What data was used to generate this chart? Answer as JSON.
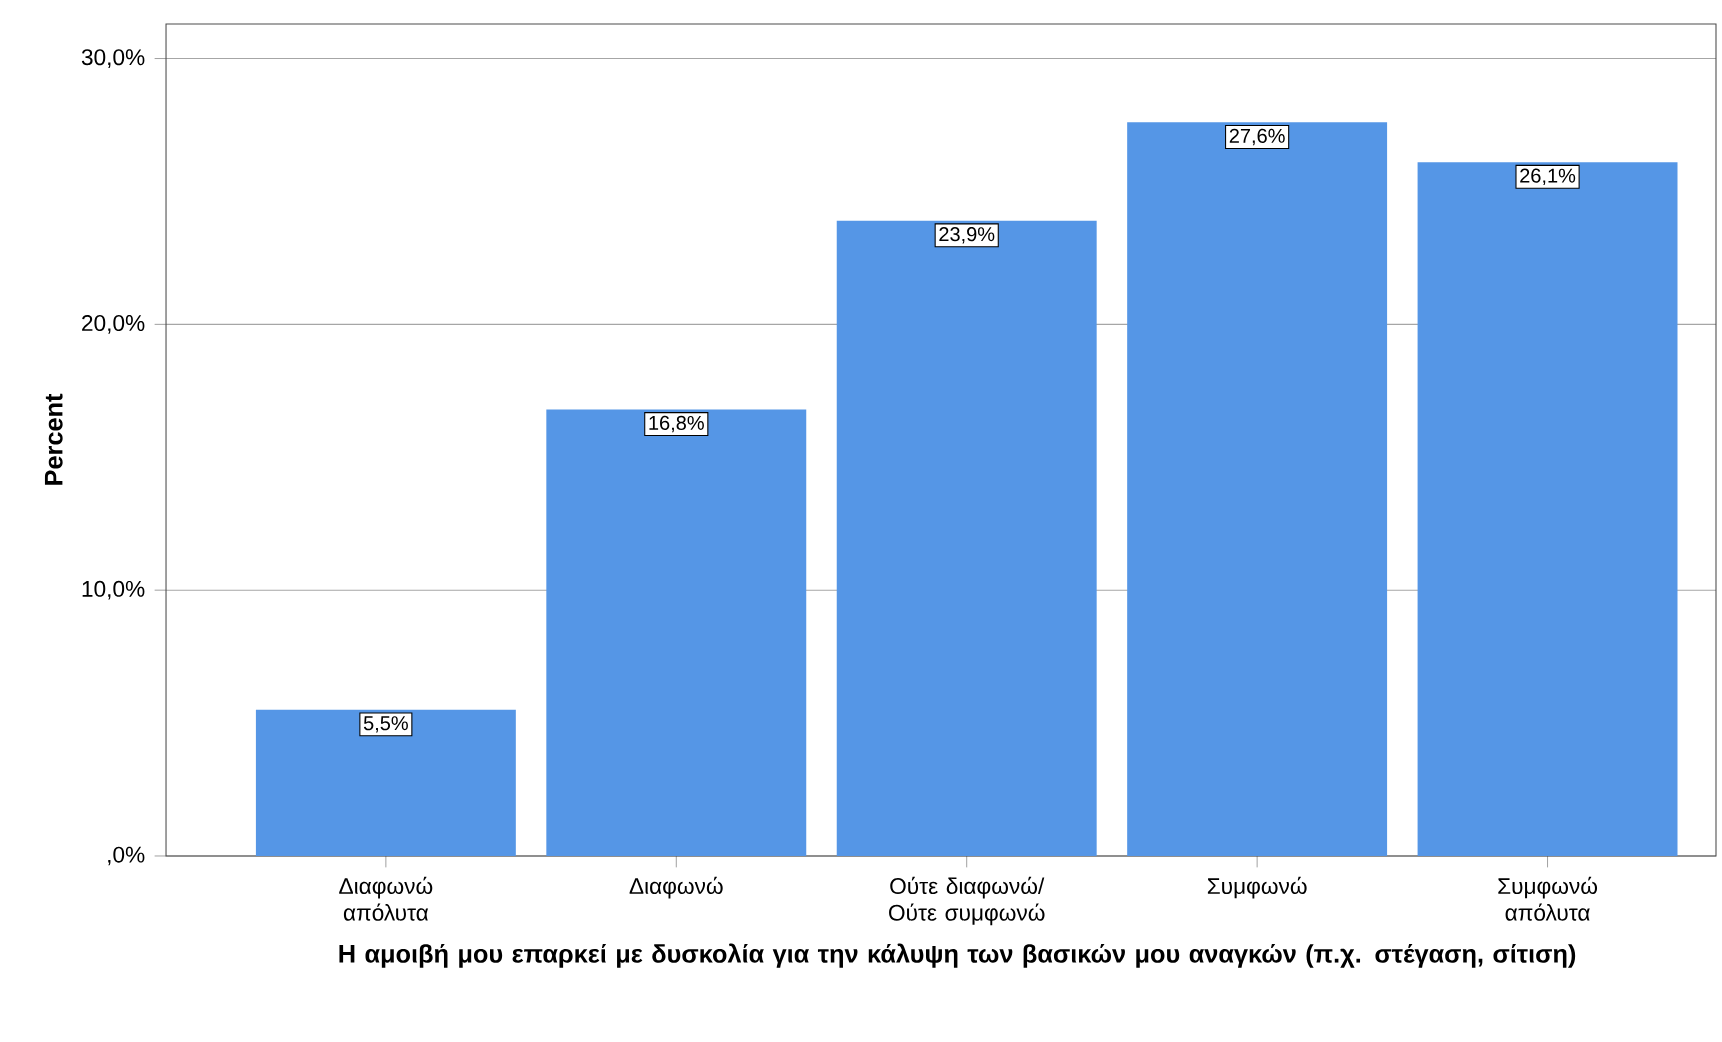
{
  "chart_data": {
    "type": "bar",
    "xlabel": "Η αμοιβή μου επαρκεί με δυσκολία για την κάλυψη των βασικών μου αναγκών (π.χ. στέγαση, σίτιση)",
    "ylabel": "Percent",
    "categories": [
      "Διαφωνώ απόλυτα",
      "Διαφωνώ",
      "Ούτε διαφωνώ/ Ούτε συμφωνώ",
      "Συμφωνώ",
      "Συμφωνώ απόλυτα"
    ],
    "values": [
      5.5,
      16.8,
      23.9,
      27.6,
      26.1
    ],
    "value_labels": [
      "5,5%",
      "16,8%",
      "23,9%",
      "27,6%",
      "26,1%"
    ],
    "color": "#5596e6",
    "ylim": [
      0,
      31.3
    ],
    "yticks": [
      {
        "value": 0,
        "label": ",0%"
      },
      {
        "value": 10,
        "label": "10,0%"
      },
      {
        "value": 20,
        "label": "20,0%"
      },
      {
        "value": 30,
        "label": "30,0%"
      }
    ],
    "grid": "y"
  }
}
